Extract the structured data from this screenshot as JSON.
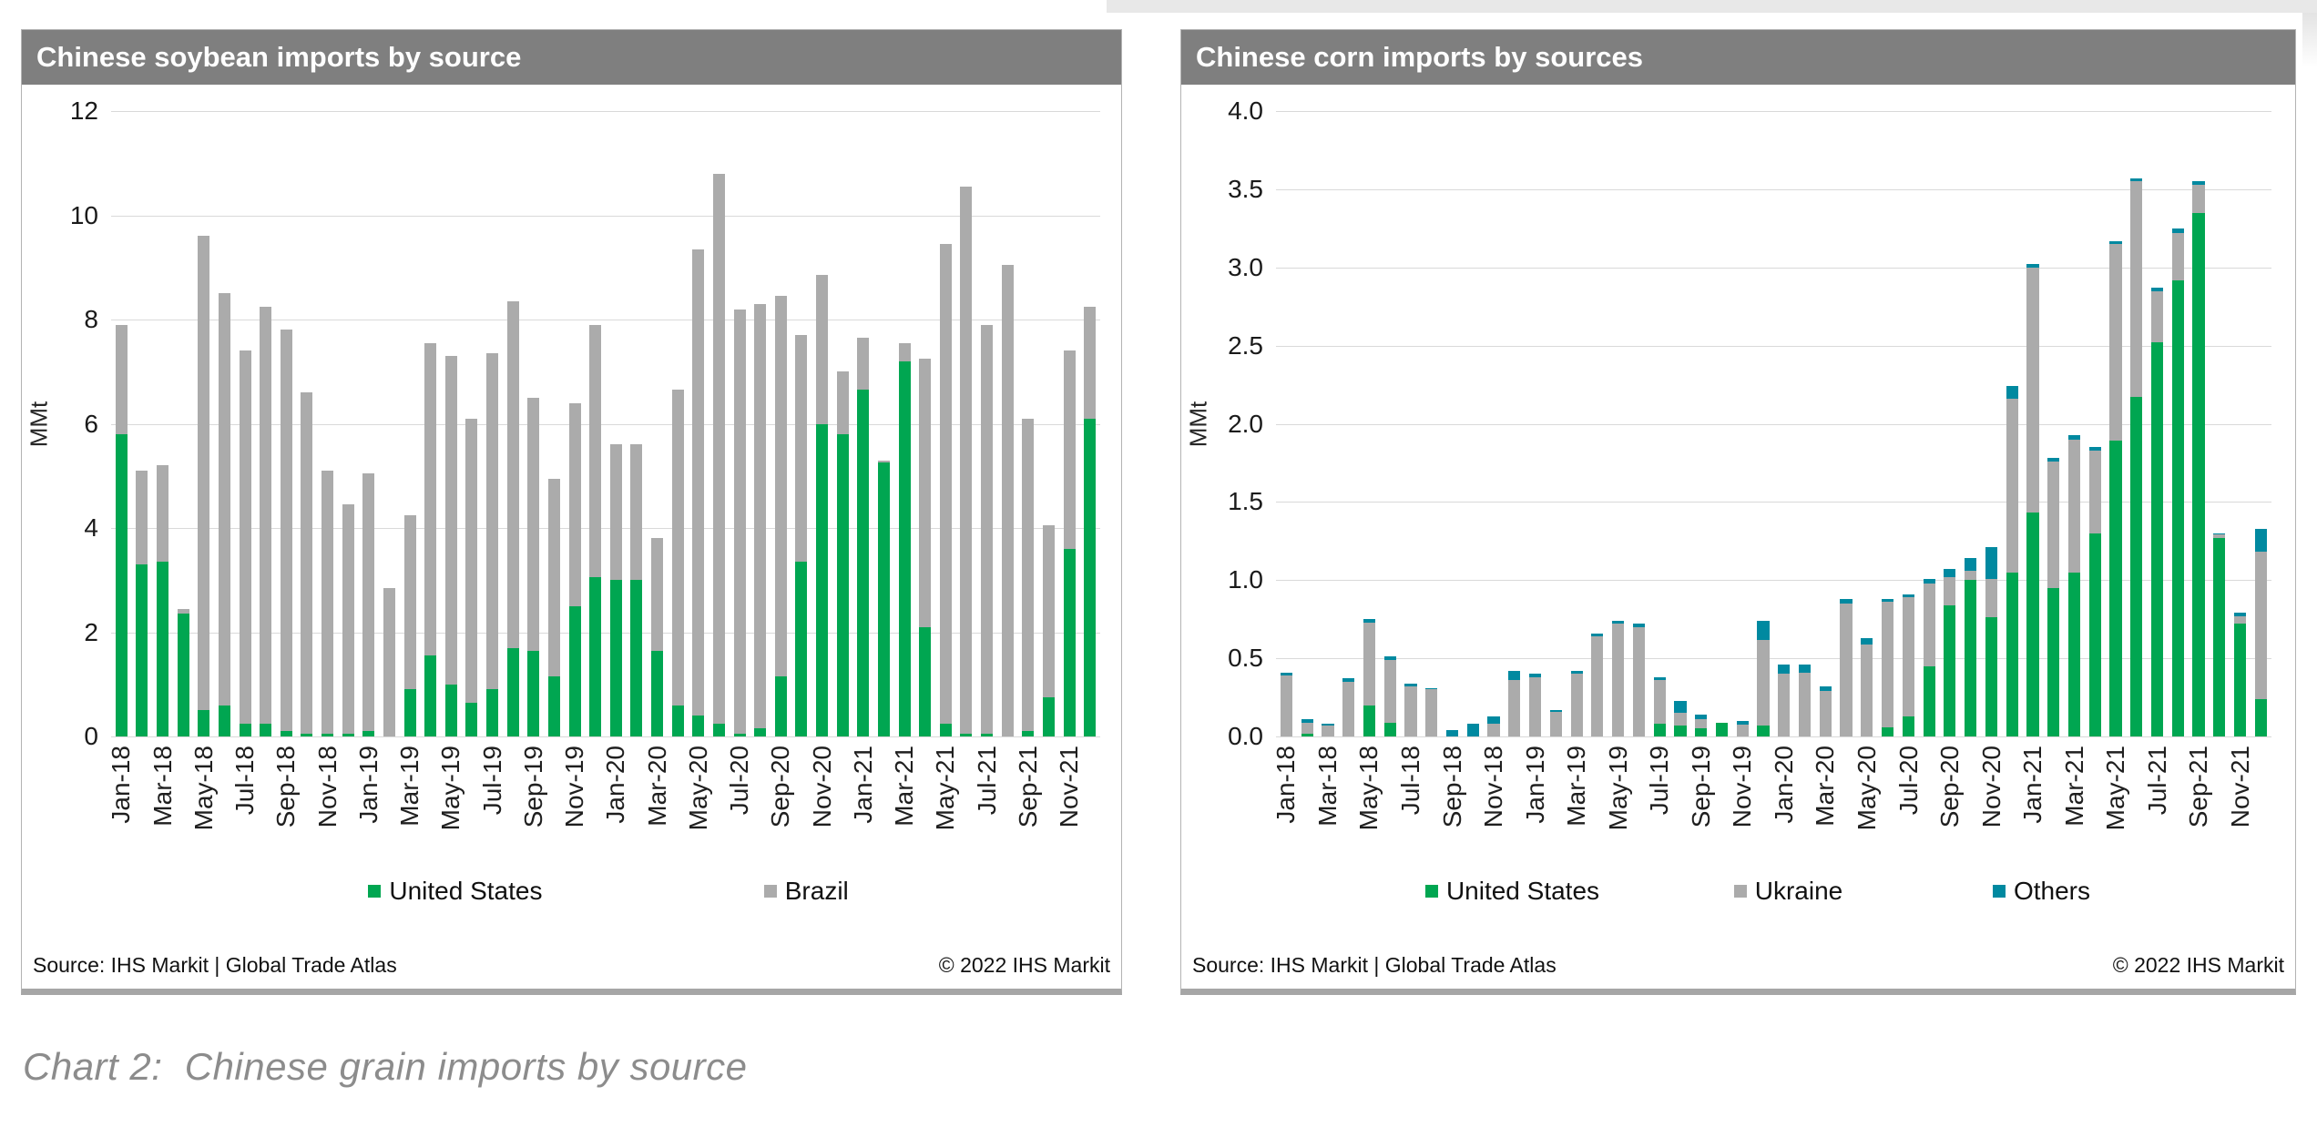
{
  "page": {
    "caption": "Chart 2:  Chinese grain imports by source"
  },
  "chart_data": [
    {
      "type": "bar",
      "stacked": true,
      "title": "Chinese soybean imports by source",
      "ylabel": "MMt",
      "source_left": "Source: IHS Markit | Global Trade Atlas",
      "source_right": "© 2022 IHS Markit",
      "ylim": [
        0,
        12
      ],
      "ytick_step": 2,
      "ytick_decimals": 0,
      "grid": "horizontal",
      "legend_position": "bottom",
      "categories": [
        "Jan-18",
        "Feb-18",
        "Mar-18",
        "Apr-18",
        "May-18",
        "Jun-18",
        "Jul-18",
        "Aug-18",
        "Sep-18",
        "Oct-18",
        "Nov-18",
        "Dec-18",
        "Jan-19",
        "Feb-19",
        "Mar-19",
        "Apr-19",
        "May-19",
        "Jun-19",
        "Jul-19",
        "Aug-19",
        "Sep-19",
        "Oct-19",
        "Nov-19",
        "Dec-19",
        "Jan-20",
        "Feb-20",
        "Mar-20",
        "Apr-20",
        "May-20",
        "Jun-20",
        "Jul-20",
        "Aug-20",
        "Sep-20",
        "Oct-20",
        "Nov-20",
        "Dec-20",
        "Jan-21",
        "Feb-21",
        "Mar-21",
        "Apr-21",
        "May-21",
        "Jun-21",
        "Jul-21",
        "Aug-21",
        "Sep-21",
        "Oct-21",
        "Nov-21",
        "Dec-21"
      ],
      "series": [
        {
          "name": "United States",
          "color": "#00A651",
          "values": [
            5.8,
            3.3,
            3.35,
            2.35,
            0.5,
            0.6,
            0.25,
            0.25,
            0.1,
            0.05,
            0.05,
            0.05,
            0.1,
            0,
            0.9,
            1.55,
            1.0,
            0.65,
            0.9,
            1.7,
            1.65,
            1.15,
            2.5,
            3.05,
            3.0,
            3.0,
            1.65,
            0.6,
            0.4,
            0.25,
            0.05,
            0.15,
            1.15,
            3.35,
            6.0,
            5.8,
            6.65,
            5.25,
            7.2,
            2.1,
            0.25,
            0.05,
            0.05,
            0,
            0.1,
            0.75,
            3.6,
            6.1
          ]
        },
        {
          "name": "Brazil",
          "color": "#ABABAB",
          "values": [
            2.1,
            1.8,
            1.85,
            0.1,
            9.1,
            7.9,
            7.15,
            8.0,
            7.7,
            6.55,
            5.05,
            4.4,
            4.95,
            2.85,
            3.35,
            6.0,
            6.3,
            5.45,
            6.45,
            6.65,
            4.85,
            3.8,
            3.9,
            4.85,
            2.6,
            2.6,
            2.15,
            6.05,
            8.95,
            10.55,
            8.15,
            8.15,
            7.3,
            4.35,
            2.85,
            1.2,
            1.0,
            0.05,
            0.35,
            5.15,
            9.2,
            10.5,
            7.85,
            9.05,
            6.0,
            3.3,
            3.8,
            2.15
          ]
        }
      ]
    },
    {
      "type": "bar",
      "stacked": true,
      "title": "Chinese corn imports by sources",
      "ylabel": "MMt",
      "source_left": "Source: IHS Markit | Global Trade Atlas",
      "source_right": "© 2022 IHS Markit",
      "ylim": [
        0,
        4.0
      ],
      "ytick_step": 0.5,
      "ytick_decimals": 1,
      "grid": "horizontal",
      "legend_position": "bottom",
      "categories": [
        "Jan-18",
        "Feb-18",
        "Mar-18",
        "Apr-18",
        "May-18",
        "Jun-18",
        "Jul-18",
        "Aug-18",
        "Sep-18",
        "Oct-18",
        "Nov-18",
        "Dec-18",
        "Jan-19",
        "Feb-19",
        "Mar-19",
        "Apr-19",
        "May-19",
        "Jun-19",
        "Jul-19",
        "Aug-19",
        "Sep-19",
        "Oct-19",
        "Nov-19",
        "Dec-19",
        "Jan-20",
        "Feb-20",
        "Mar-20",
        "Apr-20",
        "May-20",
        "Jun-20",
        "Jul-20",
        "Aug-20",
        "Sep-20",
        "Oct-20",
        "Nov-20",
        "Dec-20",
        "Jan-21",
        "Feb-21",
        "Mar-21",
        "Apr-21",
        "May-21",
        "Jun-21",
        "Jul-21",
        "Aug-21",
        "Sep-21",
        "Oct-21",
        "Nov-21",
        "Dec-21"
      ],
      "series": [
        {
          "name": "United States",
          "color": "#00A651",
          "values": [
            0,
            0.02,
            0,
            0,
            0.2,
            0.09,
            0,
            0,
            0,
            0,
            0,
            0,
            0,
            0,
            0,
            0,
            0,
            0,
            0.08,
            0.07,
            0.05,
            0.09,
            0,
            0.07,
            0,
            0,
            0,
            0,
            0,
            0.06,
            0.13,
            0.45,
            0.84,
            1.0,
            0.76,
            1.05,
            1.43,
            0.95,
            1.05,
            1.3,
            1.89,
            2.17,
            2.52,
            2.92,
            3.35,
            1.27,
            0.72,
            0.24
          ]
        },
        {
          "name": "Ukraine",
          "color": "#ABABAB",
          "values": [
            0.39,
            0.07,
            0.07,
            0.35,
            0.53,
            0.4,
            0.32,
            0.3,
            0,
            0,
            0.08,
            0.36,
            0.38,
            0.16,
            0.4,
            0.64,
            0.72,
            0.7,
            0.28,
            0.08,
            0.06,
            0,
            0.075,
            0.55,
            0.4,
            0.41,
            0.29,
            0.85,
            0.59,
            0.8,
            0.76,
            0.53,
            0.18,
            0.06,
            0.25,
            1.11,
            1.57,
            0.81,
            0.85,
            0.53,
            1.26,
            1.38,
            0.33,
            0.3,
            0.18,
            0.02,
            0.05,
            0.94
          ]
        },
        {
          "name": "Others",
          "color": "#0089A0",
          "values": [
            0.02,
            0.02,
            0.01,
            0.02,
            0.02,
            0.02,
            0.02,
            0.01,
            0.04,
            0.08,
            0.05,
            0.06,
            0.02,
            0.01,
            0.02,
            0.02,
            0.02,
            0.02,
            0.02,
            0.08,
            0.03,
            0,
            0.025,
            0.12,
            0.06,
            0.05,
            0.03,
            0.03,
            0.04,
            0.02,
            0.02,
            0.03,
            0.05,
            0.08,
            0.2,
            0.08,
            0.02,
            0.02,
            0.03,
            0.02,
            0.02,
            0.02,
            0.02,
            0.03,
            0.02,
            0.01,
            0.02,
            0.15
          ]
        }
      ]
    }
  ]
}
